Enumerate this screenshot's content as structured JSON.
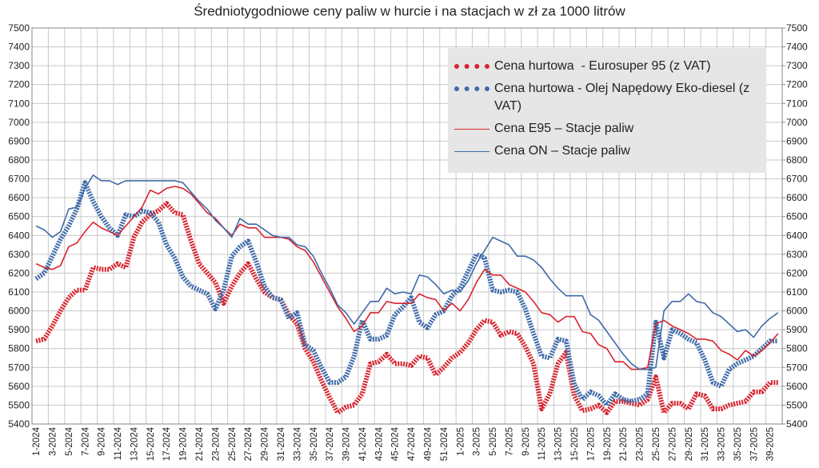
{
  "chart_data": {
    "type": "line",
    "title": "Średniotygodniowe ceny paliw w hurcie i na stacjach w zł za 1000 litrów",
    "categories": [
      "1-2024",
      null,
      "3-2024",
      null,
      "5-2024",
      null,
      "7-2024",
      null,
      "9-2024",
      null,
      "11-2024",
      null,
      "13-2024",
      null,
      "15-2024",
      null,
      "17-2024",
      null,
      "19-2024",
      null,
      "21-2024",
      null,
      "23-2024",
      null,
      "25-2024",
      null,
      "27-2024",
      null,
      "29-2024",
      null,
      "31-2024",
      null,
      "33-2024",
      null,
      "35-2024",
      null,
      "37-2024",
      null,
      "39-2024",
      null,
      "41-2024",
      null,
      "43-2024",
      null,
      "45-2024",
      null,
      "47-2024",
      null,
      "49-2024",
      null,
      "51-2024",
      null,
      "1-2025",
      null,
      "3-2025",
      null,
      "5-2025",
      null,
      "7-2025",
      null,
      "9-2025",
      null,
      "11-2025",
      null,
      "13-2025",
      null,
      "15-2025",
      null,
      "17-2025",
      null,
      "19-2025",
      null,
      "21-2025",
      null,
      "23-2025",
      null,
      "25-2025",
      null,
      "27-2025",
      null,
      "29-2025",
      null,
      "31-2025",
      null,
      "33-2025",
      null,
      "35-2025",
      null,
      "37-2025",
      null,
      "39-2025",
      null
    ],
    "ylim": [
      5400,
      7500
    ],
    "yticks": [
      5400,
      5500,
      5600,
      5700,
      5800,
      5900,
      6000,
      6100,
      6200,
      6300,
      6400,
      6500,
      6600,
      6700,
      6800,
      6900,
      7000,
      7100,
      7200,
      7300,
      7400,
      7500
    ],
    "y2lim": [
      5400,
      7500
    ],
    "y2ticks": [
      5400,
      5500,
      5600,
      5700,
      5800,
      5900,
      6000,
      6100,
      6200,
      6300,
      6400,
      6500,
      6600,
      6700,
      6800,
      6900,
      7000,
      7100,
      7200,
      7300,
      7400,
      7500
    ],
    "grid": true,
    "legend": "upper right",
    "series": [
      {
        "name": "Cena hurtowa  - Eurosuper 95 (z VAT)",
        "color": "#d9232e",
        "line_style": "dashed-thick",
        "values": [
          5840,
          5850,
          5920,
          6000,
          6070,
          6110,
          6110,
          6230,
          6220,
          6220,
          6250,
          6230,
          6390,
          6470,
          6510,
          6530,
          6570,
          6520,
          6510,
          6370,
          6250,
          6200,
          6150,
          6040,
          6130,
          6200,
          6250,
          6170,
          6100,
          6070,
          6060,
          5980,
          5930,
          5800,
          5730,
          5630,
          5540,
          5460,
          5490,
          5500,
          5560,
          5720,
          5730,
          5770,
          5720,
          5720,
          5710,
          5760,
          5750,
          5660,
          5700,
          5750,
          5780,
          5830,
          5900,
          5950,
          5940,
          5870,
          5890,
          5880,
          5810,
          5720,
          5480,
          5560,
          5720,
          5780,
          5550,
          5470,
          5480,
          5500,
          5460,
          5520,
          5520,
          5510,
          5500,
          5530,
          5650,
          5460,
          5510,
          5510,
          5480,
          5560,
          5550,
          5480,
          5480,
          5500,
          5510,
          5520,
          5570,
          5570,
          5620,
          5620
        ]
      },
      {
        "name": "Cena hurtowa - Olej Napędowy Eko-diesel (z VAT)",
        "color": "#3e6aa8",
        "line_style": "dashed-thick",
        "values": [
          6170,
          6200,
          6290,
          6380,
          6450,
          6540,
          6680,
          6580,
          6500,
          6440,
          6400,
          6510,
          6500,
          6530,
          6520,
          6470,
          6350,
          6280,
          6180,
          6130,
          6110,
          6090,
          6010,
          6110,
          6290,
          6340,
          6370,
          6260,
          6130,
          6070,
          6060,
          5960,
          5990,
          5820,
          5790,
          5700,
          5620,
          5620,
          5650,
          5760,
          5950,
          5850,
          5850,
          5870,
          5980,
          6020,
          6070,
          5940,
          5910,
          5980,
          6000,
          6080,
          6120,
          6210,
          6300,
          6280,
          6110,
          6100,
          6110,
          6100,
          6010,
          5880,
          5760,
          5750,
          5850,
          5840,
          5610,
          5530,
          5570,
          5550,
          5500,
          5560,
          5530,
          5520,
          5530,
          5560,
          5940,
          5750,
          5900,
          5880,
          5850,
          5830,
          5740,
          5620,
          5600,
          5690,
          5720,
          5740,
          5760,
          5800,
          5840,
          5840
        ]
      },
      {
        "name": "Cena E95 – Stacje paliw",
        "color": "#d9232e",
        "line_style": "solid",
        "values": [
          6250,
          6230,
          6220,
          6240,
          6340,
          6360,
          6420,
          6470,
          6440,
          6420,
          6400,
          6450,
          6500,
          6550,
          6640,
          6620,
          6650,
          6660,
          6650,
          6620,
          6570,
          6520,
          6490,
          6440,
          6400,
          6460,
          6440,
          6440,
          6390,
          6390,
          6390,
          6380,
          6340,
          6320,
          6260,
          6180,
          6100,
          6020,
          5960,
          5890,
          5920,
          5990,
          5990,
          6050,
          6040,
          6040,
          6040,
          6090,
          6070,
          6060,
          6000,
          6040,
          6000,
          6060,
          6150,
          6220,
          6190,
          6190,
          6140,
          6120,
          6100,
          6050,
          5990,
          5980,
          5940,
          5970,
          5970,
          5890,
          5880,
          5820,
          5800,
          5730,
          5730,
          5690,
          5690,
          5700,
          5930,
          5950,
          5920,
          5900,
          5880,
          5850,
          5850,
          5840,
          5790,
          5770,
          5740,
          5790,
          5760,
          5790,
          5830,
          5880
        ]
      },
      {
        "name": "Cena ON – Stacje paliw",
        "color": "#3e6aa8",
        "line_style": "solid",
        "values": [
          6450,
          6430,
          6390,
          6420,
          6540,
          6550,
          6650,
          6720,
          6690,
          6690,
          6670,
          6690,
          6690,
          6690,
          6690,
          6690,
          6690,
          6690,
          6680,
          6630,
          6580,
          6540,
          6480,
          6440,
          6390,
          6490,
          6460,
          6460,
          6430,
          6400,
          6390,
          6390,
          6350,
          6340,
          6290,
          6200,
          6120,
          6030,
          5990,
          5930,
          5990,
          6050,
          6050,
          6120,
          6090,
          6100,
          6090,
          6190,
          6180,
          6140,
          6090,
          6110,
          6100,
          6160,
          6250,
          6320,
          6390,
          6370,
          6350,
          6290,
          6290,
          6270,
          6230,
          6170,
          6120,
          6080,
          6080,
          6080,
          5980,
          5950,
          5890,
          5830,
          5770,
          5720,
          5690,
          5690,
          5700,
          6000,
          6050,
          6050,
          6090,
          6050,
          6040,
          5990,
          5970,
          5930,
          5890,
          5900,
          5860,
          5920,
          5960,
          5990
        ]
      }
    ]
  }
}
